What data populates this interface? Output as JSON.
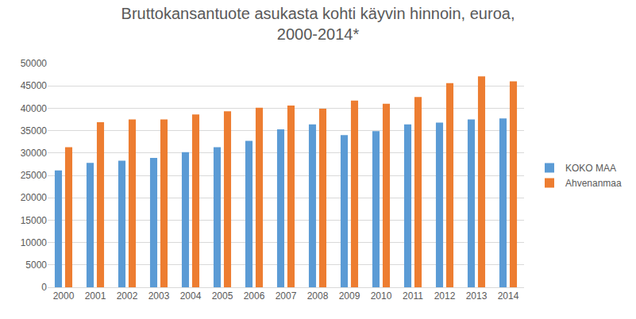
{
  "chart_data": {
    "type": "bar",
    "title": "Bruttokansantuote asukasta kohti käyvin hinnoin, euroa,\n2000-2014*",
    "categories": [
      "2000",
      "2001",
      "2002",
      "2003",
      "2004",
      "2005",
      "2006",
      "2007",
      "2008",
      "2009",
      "2010",
      "2011",
      "2012",
      "2013",
      "2014"
    ],
    "series": [
      {
        "name": "KOKO MAA",
        "color": "#5B9BD5",
        "values": [
          26100,
          27800,
          28300,
          28900,
          30200,
          31300,
          32700,
          35300,
          36400,
          34000,
          34900,
          36400,
          36800,
          37500,
          37700
        ]
      },
      {
        "name": "Ahvenanmaa",
        "color": "#ED7D31",
        "values": [
          31300,
          36900,
          37500,
          37500,
          38600,
          39300,
          40100,
          40600,
          39900,
          41700,
          41000,
          42500,
          45600,
          47100,
          46000
        ]
      }
    ],
    "ylim": [
      0,
      50000
    ],
    "yticks": [
      0,
      5000,
      10000,
      15000,
      20000,
      25000,
      30000,
      35000,
      40000,
      45000,
      50000
    ],
    "grid": true,
    "legend": "right"
  }
}
